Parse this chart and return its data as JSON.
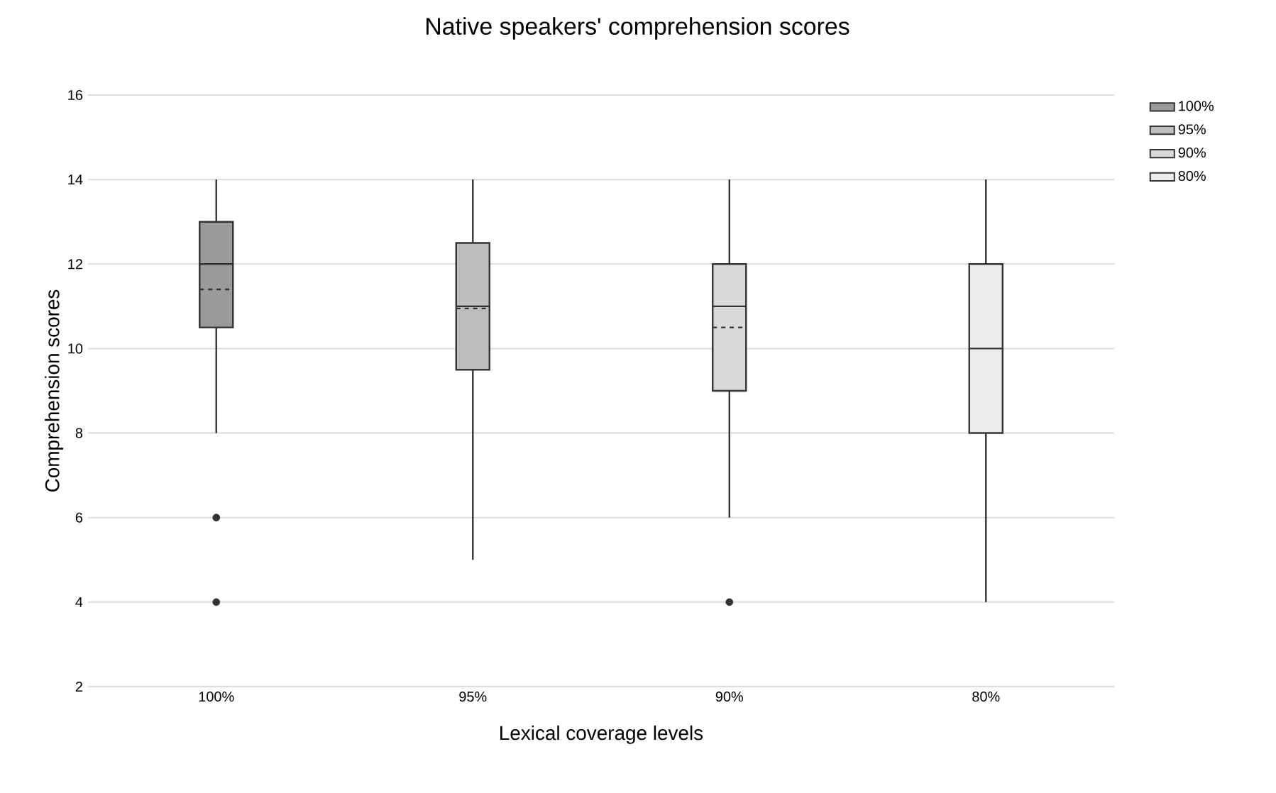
{
  "chart_data": {
    "type": "box",
    "title": "Native speakers' comprehension scores",
    "xlabel": "Lexical coverage levels",
    "ylabel": "Comprehension scores",
    "categories": [
      "100%",
      "95%",
      "90%",
      "80%"
    ],
    "series": [
      {
        "name": "100%",
        "color": "#9a9a9a",
        "boxes": [
          {
            "low": 8,
            "q1": 10.5,
            "median": 12,
            "q3": 13,
            "high": 14,
            "mean": 11.4,
            "outliers": [
              6,
              4
            ]
          },
          null,
          null,
          null
        ]
      },
      {
        "name": "95%",
        "color": "#bdbdbd",
        "boxes": [
          null,
          {
            "low": 5,
            "q1": 9.5,
            "median": 11,
            "q3": 12.5,
            "high": 14,
            "mean": 10.95
          },
          null,
          null
        ]
      },
      {
        "name": "90%",
        "color": "#d9d9d9",
        "boxes": [
          null,
          null,
          {
            "low": 6,
            "q1": 9,
            "median": 11,
            "q3": 12,
            "high": 14,
            "mean": 10.5,
            "outliers": [
              4
            ]
          },
          null
        ]
      },
      {
        "name": "80%",
        "color": "#ececec",
        "boxes": [
          null,
          null,
          null,
          {
            "low": 4,
            "q1": 8,
            "median": 10,
            "q3": 12,
            "high": 14
          }
        ]
      }
    ],
    "ylim": [
      2,
      16
    ],
    "yticks": [
      2,
      4,
      6,
      8,
      10,
      12,
      14,
      16
    ],
    "grid": "y",
    "legend": "top right"
  }
}
